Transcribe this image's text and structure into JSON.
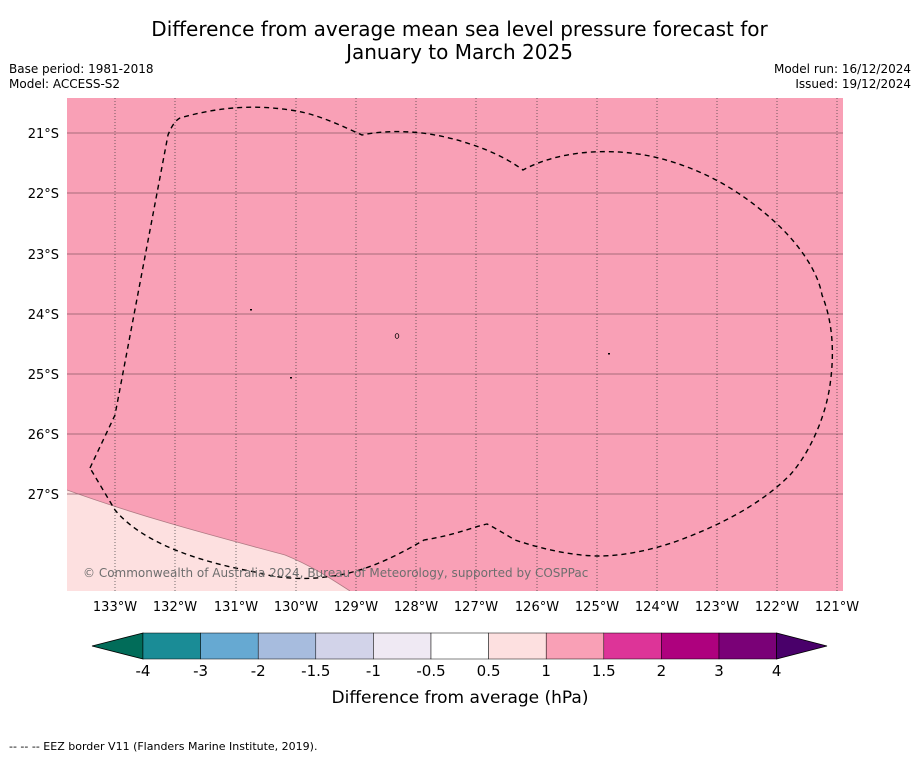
{
  "title_line1": "Difference from average mean sea level pressure forecast for",
  "title_line2": "January to March 2025",
  "base_period": "Base period: 1981-2018",
  "model": "Model: ACCESS-S2",
  "model_run": "Model run: 16/12/2024",
  "issued": "Issued: 19/12/2024",
  "copyright": "© Commonwealth of Australia 2024, Bureau of Meteorology, supported by COSPPac",
  "footnote": "--  --  -- EEZ border V11 (Flanders Marine Institute, 2019).",
  "map": {
    "lat_labels": [
      "21°S",
      "22°S",
      "23°S",
      "24°S",
      "25°S",
      "26°S",
      "27°S"
    ],
    "lon_labels": [
      "133°W",
      "132°W",
      "131°W",
      "130°W",
      "129°W",
      "128°W",
      "127°W",
      "126°W",
      "125°W",
      "124°W",
      "123°W",
      "122°W",
      "121°W"
    ],
    "dominant_category": "1 to 1.5 hPa",
    "secondary_category": "0.5 to 1 hPa (southwest corner)",
    "fill_main": "#f9a0b6",
    "fill_secondary": "#fde0e0"
  },
  "colorbar": {
    "label": "Difference from average (hPa)",
    "ticks": [
      "-4",
      "-3",
      "-2",
      "-1.5",
      "-1",
      "-0.5",
      "0.5",
      "1",
      "1.5",
      "2",
      "3",
      "4"
    ],
    "colors": [
      "#1a8c96",
      "#66a9d2",
      "#a7bcde",
      "#d2d3e9",
      "#efe9f3",
      "#ffffff",
      "#fde0e0",
      "#f9a0b6",
      "#dd3498",
      "#ae017e",
      "#7a0177"
    ],
    "under_color": "#016c59",
    "over_color": "#49006a"
  }
}
